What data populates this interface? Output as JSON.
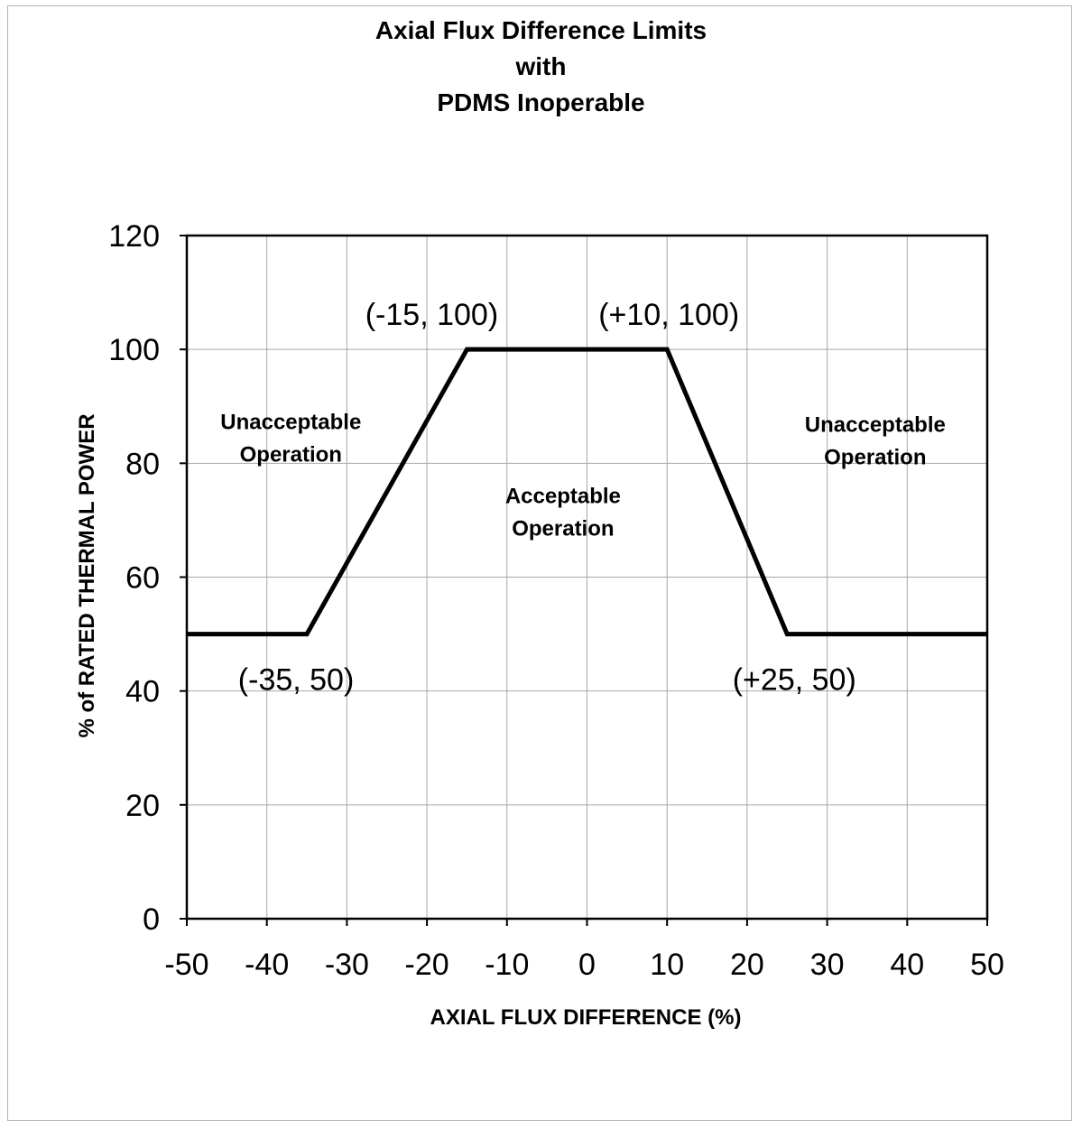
{
  "chart_data": {
    "type": "line",
    "title": [
      "Axial Flux Difference Limits",
      "with",
      "PDMS Inoperable"
    ],
    "xlabel": "AXIAL FLUX DIFFERENCE (%)",
    "ylabel": "% of RATED THERMAL POWER",
    "xlim": [
      -50,
      50
    ],
    "ylim": [
      0,
      120
    ],
    "xticks": [
      -50,
      -40,
      -30,
      -20,
      -10,
      0,
      10,
      20,
      30,
      40,
      50
    ],
    "yticks": [
      0,
      20,
      40,
      60,
      80,
      100,
      120
    ],
    "xtick_labels": [
      "-50",
      "-40",
      "-30",
      "-20",
      "-10",
      "0",
      "10",
      "20",
      "30",
      "40",
      "50"
    ],
    "ytick_labels": [
      "0",
      "20",
      "40",
      "60",
      "80",
      "100",
      "120"
    ],
    "grid": true,
    "legend": "none",
    "series": [
      {
        "x": [
          -50,
          -35,
          -15,
          10,
          25,
          50
        ],
        "y": [
          50,
          50,
          100,
          100,
          50,
          50
        ]
      }
    ],
    "point_labels": [
      {
        "text": "(-15, 100)",
        "x": -15,
        "y": 100
      },
      {
        "text": "(+10, 100)",
        "x": 10,
        "y": 100
      },
      {
        "text": "(-35, 50)",
        "x": -35,
        "y": 50
      },
      {
        "text": "(+25, 50)",
        "x": 25,
        "y": 50
      }
    ],
    "region_labels": [
      {
        "lines": [
          "Unacceptable",
          "Operation"
        ],
        "x": -37,
        "y": 86
      },
      {
        "lines": [
          "Acceptable",
          "Operation"
        ],
        "x": -3,
        "y": 73
      },
      {
        "lines": [
          "Unacceptable",
          "Operation"
        ],
        "x": 36,
        "y": 85.5
      }
    ],
    "colors": {
      "line": "#000000",
      "grid": "#a8a8a8",
      "text": "#000000"
    }
  }
}
